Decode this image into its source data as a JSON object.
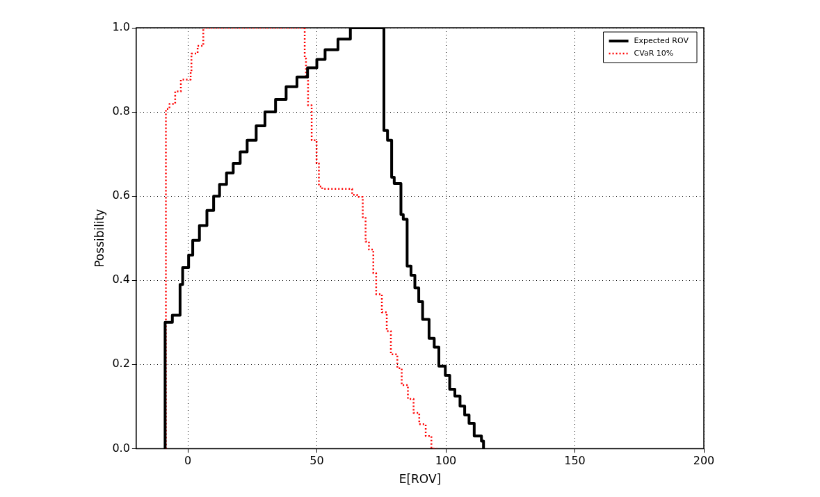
{
  "chart_data": {
    "type": "step",
    "xlabel": "E[ROV]",
    "ylabel": "Possibility",
    "xlim": [
      -20,
      200
    ],
    "xticks": [
      0,
      50,
      100,
      150,
      200
    ],
    "ylim": [
      0,
      1
    ],
    "yticks": [
      {
        "value": 0,
        "label": "0.0"
      },
      {
        "value": 0.2,
        "label": "0.2"
      },
      {
        "value": 0.4,
        "label": "0.4"
      },
      {
        "value": 0.6,
        "label": "0.6"
      },
      {
        "value": 0.8,
        "label": "0.8"
      },
      {
        "value": 1,
        "label": "1.0"
      }
    ],
    "grid": true,
    "legend": "top right",
    "series": [
      {
        "name": "Expected ROV",
        "color": "#000000",
        "line_style": "solid",
        "x": [
          -8.8,
          -8.8,
          -6,
          -3,
          -2,
          0.3,
          1.9,
          4.5,
          7.4,
          10,
          12.3,
          15,
          17.6,
          20.3,
          23,
          26.5,
          29.9,
          34,
          38.1,
          42.3,
          46.4,
          50,
          53.2,
          58.2,
          63,
          76,
          77.4,
          79,
          80,
          82.6,
          83.5,
          85,
          86.5,
          88,
          89.5,
          91,
          93.5,
          95.5,
          97.3,
          99.8,
          101.5,
          103.5,
          105.5,
          107.3,
          109,
          111,
          113.8,
          114.6
        ],
        "values": [
          0,
          0.3,
          0.317,
          0.39,
          0.43,
          0.46,
          0.495,
          0.53,
          0.566,
          0.6,
          0.628,
          0.655,
          0.678,
          0.705,
          0.733,
          0.767,
          0.8,
          0.83,
          0.86,
          0.883,
          0.905,
          0.925,
          0.948,
          0.973,
          1,
          0.756,
          0.733,
          0.645,
          0.63,
          0.556,
          0.545,
          0.434,
          0.412,
          0.382,
          0.349,
          0.307,
          0.262,
          0.241,
          0.196,
          0.174,
          0.141,
          0.125,
          0.101,
          0.08,
          0.06,
          0.03,
          0.018,
          0
        ]
      },
      {
        "name": "CVaR 10%",
        "color": "#ff0000",
        "line_style": "dotted",
        "x": [
          -8.5,
          -8.5,
          -7.1,
          -4.9,
          -2.7,
          1.1,
          1.4,
          3.8,
          6,
          45.3,
          45.8,
          46.6,
          48,
          49.9,
          50.8,
          52.1,
          63.7,
          65.6,
          67.8,
          68.9,
          70.2,
          71.9,
          73,
          75.2,
          77.1,
          78.7,
          81.2,
          82.9,
          85.3,
          87.5,
          89.7,
          92.2,
          94.4,
          96.6
        ],
        "values": [
          0,
          0.807,
          0.819,
          0.849,
          0.877,
          0.897,
          0.939,
          0.957,
          1,
          0.927,
          0.882,
          0.816,
          0.733,
          0.678,
          0.623,
          0.617,
          0.603,
          0.598,
          0.55,
          0.492,
          0.473,
          0.417,
          0.367,
          0.324,
          0.279,
          0.224,
          0.191,
          0.151,
          0.118,
          0.085,
          0.058,
          0.03,
          0,
          0
        ]
      }
    ]
  }
}
